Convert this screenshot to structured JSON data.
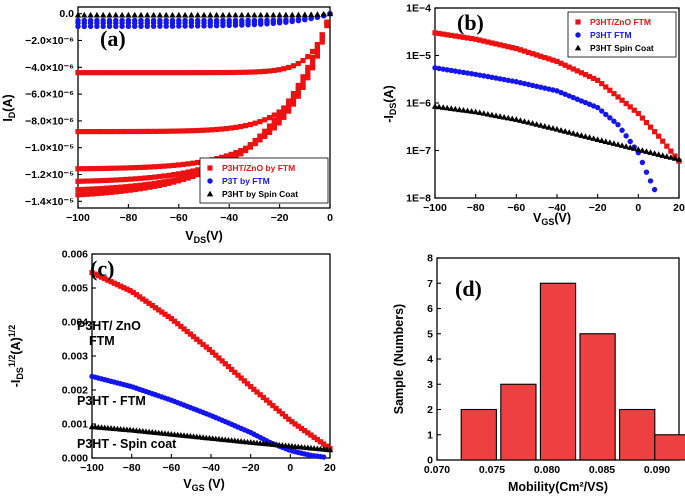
{
  "colors": {
    "red": "#ee1111",
    "blue": "#1515ee",
    "black": "#000000",
    "bar": "#ee4040",
    "purple": "#7a1f8c"
  },
  "chart_data": [
    {
      "panel": "(a)",
      "type": "line",
      "xlabel": "V_DS(V)",
      "ylabel": "I_D(A)",
      "xlim": [
        -100,
        0
      ],
      "ylim": [
        -1.45e-05,
        5e-07
      ],
      "xticks": [
        -100,
        -80,
        -60,
        -40,
        -20,
        0
      ],
      "xtick_labels": [
        "−100",
        "−80",
        "−60",
        "−40",
        "−20",
        "0"
      ],
      "yticks": [
        0,
        -2e-06,
        -4e-06,
        -6e-06,
        -8e-06,
        -1e-05,
        -1.2e-05,
        -1.4e-05
      ],
      "ytick_labels": [
        "0.0",
        "−2.0×10⁻⁶",
        "−4.0×10⁻⁶",
        "−6.0×10⁻⁶",
        "−8.0×10⁻⁶",
        "−1.0×10⁻⁵",
        "−1.2×10⁻⁵",
        "−1.4×10⁻⁵"
      ],
      "legend": [
        "P3HT/ZnO by FTM",
        "P3T by FTM",
        "P3HT by Spin Coat"
      ],
      "legend_position": "bottom-right",
      "series": [
        {
          "name": "P3HT/ZnO by FTM",
          "color": "red",
          "marker": "square",
          "curves": [
            {
              "sat": -4.4e-06,
              "vt": 0
            },
            {
              "sat": -8.8e-06,
              "vt": -10
            },
            {
              "sat": -1.16e-05,
              "vt": -22
            },
            {
              "sat": -1.26e-05,
              "vt": -30
            },
            {
              "sat": -1.33e-05,
              "vt": -36
            },
            {
              "sat": -1.38e-05,
              "vt": -42
            }
          ]
        },
        {
          "name": "P3T by FTM",
          "color": "blue",
          "marker": "circle",
          "curves": [
            {
              "sat": -5e-07,
              "vt": 0
            },
            {
              "sat": -7e-07,
              "vt": -10
            },
            {
              "sat": -9.5e-07,
              "vt": -20
            }
          ]
        },
        {
          "name": "P3HT by Spin Coat",
          "color": "black",
          "marker": "triangle",
          "curves": [
            {
              "sat": -1e-07,
              "vt": 0
            }
          ]
        }
      ]
    },
    {
      "panel": "(b)",
      "type": "line",
      "xlabel": "V_GS(V)",
      "ylabel": "-I_DS(A)",
      "xscale": "linear",
      "yscale": "log",
      "xlim": [
        -100,
        20
      ],
      "ylim": [
        1e-08,
        0.0001
      ],
      "xticks": [
        -100,
        -80,
        -60,
        -40,
        -20,
        0,
        20
      ],
      "xtick_labels": [
        "−100",
        "−80",
        "−60",
        "−40",
        "−20",
        "0",
        "20"
      ],
      "yticks": [
        1e-08,
        1e-07,
        1e-06,
        1e-05,
        0.0001
      ],
      "ytick_labels": [
        "1E−8",
        "1E−7",
        "1E−6",
        "1E−5",
        "1E−4"
      ],
      "legend": [
        "P3HT/ZnO FTM",
        "P3HT FTM",
        "P3HT Spin Coat"
      ],
      "legend_position": "top-right",
      "series": [
        {
          "name": "P3HT/ZnO FTM",
          "color": "red",
          "marker": "square",
          "x": [
            -100,
            -80,
            -60,
            -40,
            -20,
            0,
            10,
            20
          ],
          "y": [
            3e-05,
            2.2e-05,
            1.4e-05,
            7.5e-06,
            3e-06,
            6e-07,
            2e-07,
            6e-08
          ]
        },
        {
          "name": "P3HT FTM",
          "color": "blue",
          "marker": "circle",
          "x": [
            -100,
            -80,
            -60,
            -40,
            -20,
            -10,
            0,
            4,
            8
          ],
          "y": [
            5.5e-06,
            4e-06,
            2.8e-06,
            1.8e-06,
            8e-07,
            3.5e-07,
            9e-08,
            3.5e-08,
            1.5e-08
          ]
        },
        {
          "name": "P3HT Spin Coat",
          "color": "black",
          "marker": "triangle",
          "x": [
            -100,
            -80,
            -60,
            -40,
            -20,
            0,
            20
          ],
          "y": [
            8.5e-07,
            6.5e-07,
            4.5e-07,
            2.8e-07,
            1.7e-07,
            1.05e-07,
            6.5e-08
          ]
        }
      ]
    },
    {
      "panel": "(c)",
      "type": "line",
      "xlabel": "V_GS (V)",
      "ylabel": "-I_DS^1/2(A)^1/2",
      "xlim": [
        -100,
        20
      ],
      "ylim": [
        0,
        0.006
      ],
      "xticks": [
        -100,
        -80,
        -60,
        -40,
        -20,
        0,
        20
      ],
      "xtick_labels": [
        "−100",
        "−80",
        "−60",
        "−40",
        "−20",
        "0",
        "20"
      ],
      "yticks": [
        0,
        0.001,
        0.002,
        0.003,
        0.004,
        0.005,
        0.006
      ],
      "ytick_labels": [
        "0.000",
        "0.001",
        "0.002",
        "0.003",
        "0.004",
        "0.005",
        "0.006"
      ],
      "annotations": [
        "P3HT/ ZnO",
        "FTM",
        "P3HT - FTM",
        "P3HT - Spin coat"
      ],
      "series": [
        {
          "name": "P3HT/ ZnO FTM",
          "color": "red",
          "marker": "square",
          "x": [
            -100,
            -80,
            -60,
            -40,
            -20,
            0,
            20
          ],
          "y": [
            0.00545,
            0.0049,
            0.0041,
            0.00315,
            0.0021,
            0.0011,
            0.00028
          ]
        },
        {
          "name": "P3HT - FTM",
          "color": "blue",
          "marker": "circle",
          "x": [
            -100,
            -80,
            -60,
            -40,
            -20,
            -10,
            0,
            10,
            18
          ],
          "y": [
            0.0024,
            0.0021,
            0.0017,
            0.00125,
            0.00075,
            0.00045,
            0.00022,
            8e-05,
            2e-05
          ]
        },
        {
          "name": "P3HT - Spin coat",
          "color": "black",
          "marker": "triangle",
          "x": [
            -100,
            -80,
            -60,
            -40,
            -20,
            0,
            20
          ],
          "y": [
            0.00092,
            0.00082,
            0.0007,
            0.00058,
            0.00046,
            0.00035,
            0.00024
          ]
        }
      ]
    },
    {
      "panel": "(d)",
      "type": "bar",
      "xlabel": "Mobility(Cm²/VS)",
      "ylabel": "Sample (Numbers)",
      "xlim": [
        0.07,
        0.092
      ],
      "ylim": [
        0,
        8
      ],
      "xticks": [
        0.07,
        0.075,
        0.08,
        0.085,
        0.09
      ],
      "xtick_labels": [
        "0.070",
        "0.075",
        "0.080",
        "0.085",
        "0.090"
      ],
      "yticks": [
        0,
        1,
        2,
        3,
        4,
        5,
        6,
        7,
        8
      ],
      "ytick_labels": [
        "0",
        "1",
        "2",
        "3",
        "4",
        "5",
        "6",
        "7",
        "8"
      ],
      "bin_width": 0.0032,
      "centers": [
        0.0738,
        0.0774,
        0.081,
        0.0846,
        0.0882,
        0.0914
      ],
      "values": [
        2,
        3,
        7,
        5,
        2,
        1
      ]
    }
  ]
}
